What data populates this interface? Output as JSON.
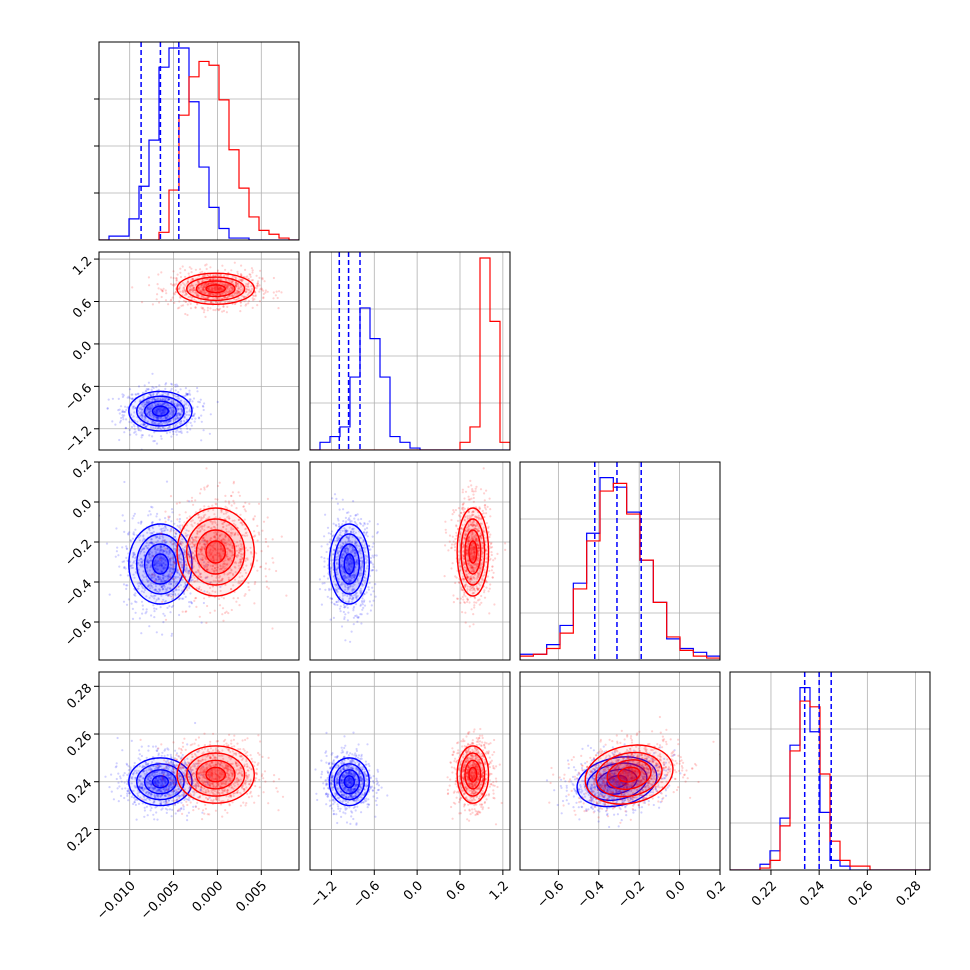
{
  "chart_data": {
    "type": "corner",
    "grid": true,
    "colors": {
      "series_a": "#0000ff",
      "series_b": "#ff0000"
    },
    "quantile_lines": {
      "series": "series_a",
      "style": "dashed"
    },
    "params": [
      {
        "id": "p0",
        "range": [
          -0.0135,
          0.0093
        ],
        "ticks": [
          {
            "v": -0.01,
            "label": "−0.010"
          },
          {
            "v": -0.005,
            "label": "−0.005"
          },
          {
            "v": 0.0,
            "label": "0.000"
          },
          {
            "v": 0.005,
            "label": "0.005"
          }
        ]
      },
      {
        "id": "p1",
        "range": [
          -1.5,
          1.3
        ],
        "ticks": [
          {
            "v": -1.2,
            "label": "−1.2"
          },
          {
            "v": -0.6,
            "label": "−0.6"
          },
          {
            "v": 0.0,
            "label": "0.0"
          },
          {
            "v": 0.6,
            "label": "0.6"
          },
          {
            "v": 1.2,
            "label": "1.2"
          }
        ]
      },
      {
        "id": "p2",
        "range": [
          -0.79,
          0.2
        ],
        "ticks": [
          {
            "v": -0.6,
            "label": "−0.6"
          },
          {
            "v": -0.4,
            "label": "−0.4"
          },
          {
            "v": -0.2,
            "label": "−0.2"
          },
          {
            "v": 0.0,
            "label": "0.0"
          },
          {
            "v": 0.2,
            "label": "0.2"
          }
        ]
      },
      {
        "id": "p3",
        "range": [
          0.203,
          0.286
        ],
        "ticks": [
          {
            "v": 0.22,
            "label": "0.22"
          },
          {
            "v": 0.24,
            "label": "0.24"
          },
          {
            "v": 0.26,
            "label": "0.26"
          },
          {
            "v": 0.28,
            "label": "0.28"
          }
        ]
      }
    ],
    "series": [
      {
        "key": "series_a",
        "color": "#0000ff",
        "mean": [
          -0.0065,
          -0.95,
          -0.31,
          0.24
        ],
        "sd": [
          0.0018,
          0.14,
          0.1,
          0.005
        ],
        "quantiles": [
          [
            -0.0087,
            -0.0065,
            -0.0044
          ],
          [
            -1.09,
            -0.96,
            -0.8
          ],
          [
            -0.42,
            -0.31,
            -0.19
          ],
          [
            0.234,
            0.24,
            0.245
          ]
        ],
        "hist": [
          [
            0,
            0.02,
            0.02,
            0.11,
            0.28,
            0.52,
            0.9,
            1.0,
            1.0,
            0.72,
            0.38,
            0.17,
            0.06,
            0.01,
            0.01,
            0,
            0,
            0,
            0,
            0
          ],
          [
            0,
            0.04,
            0.07,
            0.12,
            0.38,
            0.74,
            0.58,
            0.38,
            0.07,
            0.04,
            0.01,
            0,
            0,
            0,
            0,
            0,
            0,
            0,
            0,
            0
          ],
          [
            0.03,
            0.03,
            0.08,
            0.18,
            0.4,
            0.66,
            0.95,
            0.9,
            0.77,
            0.52,
            0.3,
            0.11,
            0.06,
            0.04,
            0.02
          ],
          [
            0,
            0,
            0,
            0.03,
            0.1,
            0.27,
            0.65,
            0.95,
            0.72,
            0.3,
            0.05,
            0.02,
            0,
            0,
            0,
            0,
            0,
            0,
            0,
            0
          ]
        ]
      },
      {
        "key": "series_b",
        "color": "#ff0000",
        "mean": [
          -0.0002,
          0.78,
          -0.25,
          0.243
        ],
        "sd": [
          0.0022,
          0.11,
          0.11,
          0.006
        ],
        "quantiles": [
          [
            -0.0024,
            -0.0002,
            0.002
          ],
          [
            0.68,
            0.78,
            0.9
          ],
          [
            -0.36,
            -0.25,
            -0.14
          ],
          [
            0.236,
            0.243,
            0.249
          ]
        ],
        "hist": [
          [
            0,
            0,
            0,
            0,
            0,
            0,
            0.04,
            0.26,
            0.65,
            0.85,
            0.93,
            0.91,
            0.73,
            0.47,
            0.27,
            0.12,
            0.05,
            0.03,
            0.01,
            0
          ],
          [
            0,
            0,
            0,
            0,
            0,
            0,
            0,
            0,
            0,
            0,
            0,
            0,
            0,
            0,
            0,
            0.04,
            0.12,
            1.0,
            0.67,
            0.04
          ],
          [
            0.02,
            0.03,
            0.06,
            0.14,
            0.37,
            0.62,
            0.88,
            0.92,
            0.76,
            0.52,
            0.3,
            0.12,
            0.05,
            0.02,
            0.01
          ],
          [
            0,
            0,
            0,
            0.01,
            0.05,
            0.23,
            0.62,
            0.88,
            0.85,
            0.5,
            0.15,
            0.05,
            0.02,
            0.02,
            0,
            0,
            0,
            0,
            0,
            0
          ]
        ]
      }
    ]
  }
}
